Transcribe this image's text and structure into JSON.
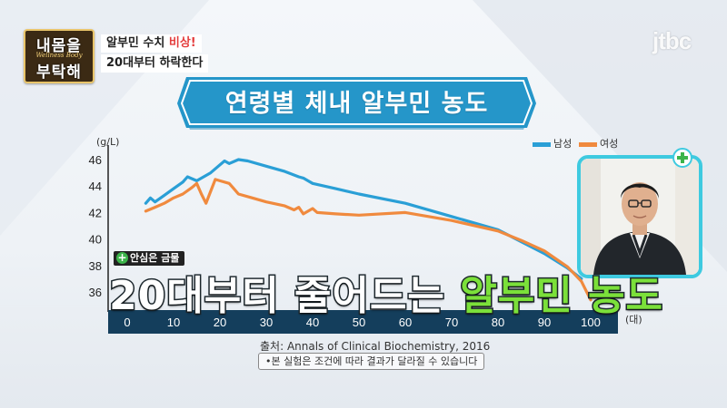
{
  "logo": {
    "line1": "내몸을",
    "line2": "Wellness Body",
    "line3": "부탁해"
  },
  "caption": {
    "line1_prefix": "알부민 수치 ",
    "line1_highlight": "비상!",
    "line2": "20대부터 하락한다"
  },
  "channel_logo": "jtbc",
  "banner_title": "연령별 체내 알부민 농도",
  "overlay": {
    "badge": "안심은 금물",
    "text_white": "20대부터 줄어드는 ",
    "text_green": "알부민 농도"
  },
  "source": "출처: Annals of Clinical Biochemistry, 2016",
  "note": "•본 실험은 조건에 따라 결과가 달라질 수 있습니다",
  "colors": {
    "male": "#2a9fd6",
    "female": "#f08a3e",
    "axis_bar": "#143e5c",
    "banner": "#2596c9"
  },
  "chart_data": {
    "type": "line",
    "title": "연령별 체내 알부민 농도",
    "ylabel": "(g/L)",
    "xlabel": "(대)",
    "xlim": [
      0,
      100
    ],
    "ylim": [
      35,
      47
    ],
    "yticks": [
      36,
      38,
      40,
      42,
      44,
      46
    ],
    "xticks": [
      0,
      10,
      20,
      30,
      40,
      50,
      60,
      70,
      80,
      90,
      100
    ],
    "legend_position": "top-right",
    "series": [
      {
        "name": "남성",
        "color": "#2a9fd6",
        "points": [
          [
            4,
            42.7
          ],
          [
            5,
            43.1
          ],
          [
            6,
            42.8
          ],
          [
            8,
            43.3
          ],
          [
            10,
            43.8
          ],
          [
            12,
            44.3
          ],
          [
            13,
            44.7
          ],
          [
            15,
            44.4
          ],
          [
            18,
            45
          ],
          [
            20,
            45.6
          ],
          [
            21,
            45.9
          ],
          [
            22,
            45.7
          ],
          [
            24,
            46
          ],
          [
            26,
            45.9
          ],
          [
            30,
            45.5
          ],
          [
            34,
            45.1
          ],
          [
            37,
            44.7
          ],
          [
            38,
            44.6
          ],
          [
            39,
            44.4
          ],
          [
            40,
            44.2
          ],
          [
            45,
            43.8
          ],
          [
            50,
            43.4
          ],
          [
            60,
            42.7
          ],
          [
            70,
            41.7
          ],
          [
            80,
            40.7
          ],
          [
            90,
            38.9
          ],
          [
            95,
            37.8
          ],
          [
            98,
            37
          ]
        ]
      },
      {
        "name": "여성",
        "color": "#f08a3e",
        "points": [
          [
            4,
            42.1
          ],
          [
            6,
            42.4
          ],
          [
            8,
            42.7
          ],
          [
            10,
            43.1
          ],
          [
            12,
            43.4
          ],
          [
            14,
            43.9
          ],
          [
            15,
            44.2
          ],
          [
            16,
            43.4
          ],
          [
            17,
            42.7
          ],
          [
            18,
            43.6
          ],
          [
            19,
            44.5
          ],
          [
            20,
            44.4
          ],
          [
            22,
            44.2
          ],
          [
            23,
            43.8
          ],
          [
            24,
            43.4
          ],
          [
            27,
            43.1
          ],
          [
            30,
            42.8
          ],
          [
            34,
            42.5
          ],
          [
            36,
            42.2
          ],
          [
            37,
            42.4
          ],
          [
            38,
            41.9
          ],
          [
            40,
            42.3
          ],
          [
            41,
            42
          ],
          [
            45,
            41.9
          ],
          [
            50,
            41.8
          ],
          [
            60,
            42
          ],
          [
            70,
            41.4
          ],
          [
            80,
            40.6
          ],
          [
            85,
            39.9
          ],
          [
            90,
            39.1
          ],
          [
            95,
            37.9
          ],
          [
            98,
            36.8
          ],
          [
            100,
            35.4
          ]
        ]
      }
    ]
  }
}
